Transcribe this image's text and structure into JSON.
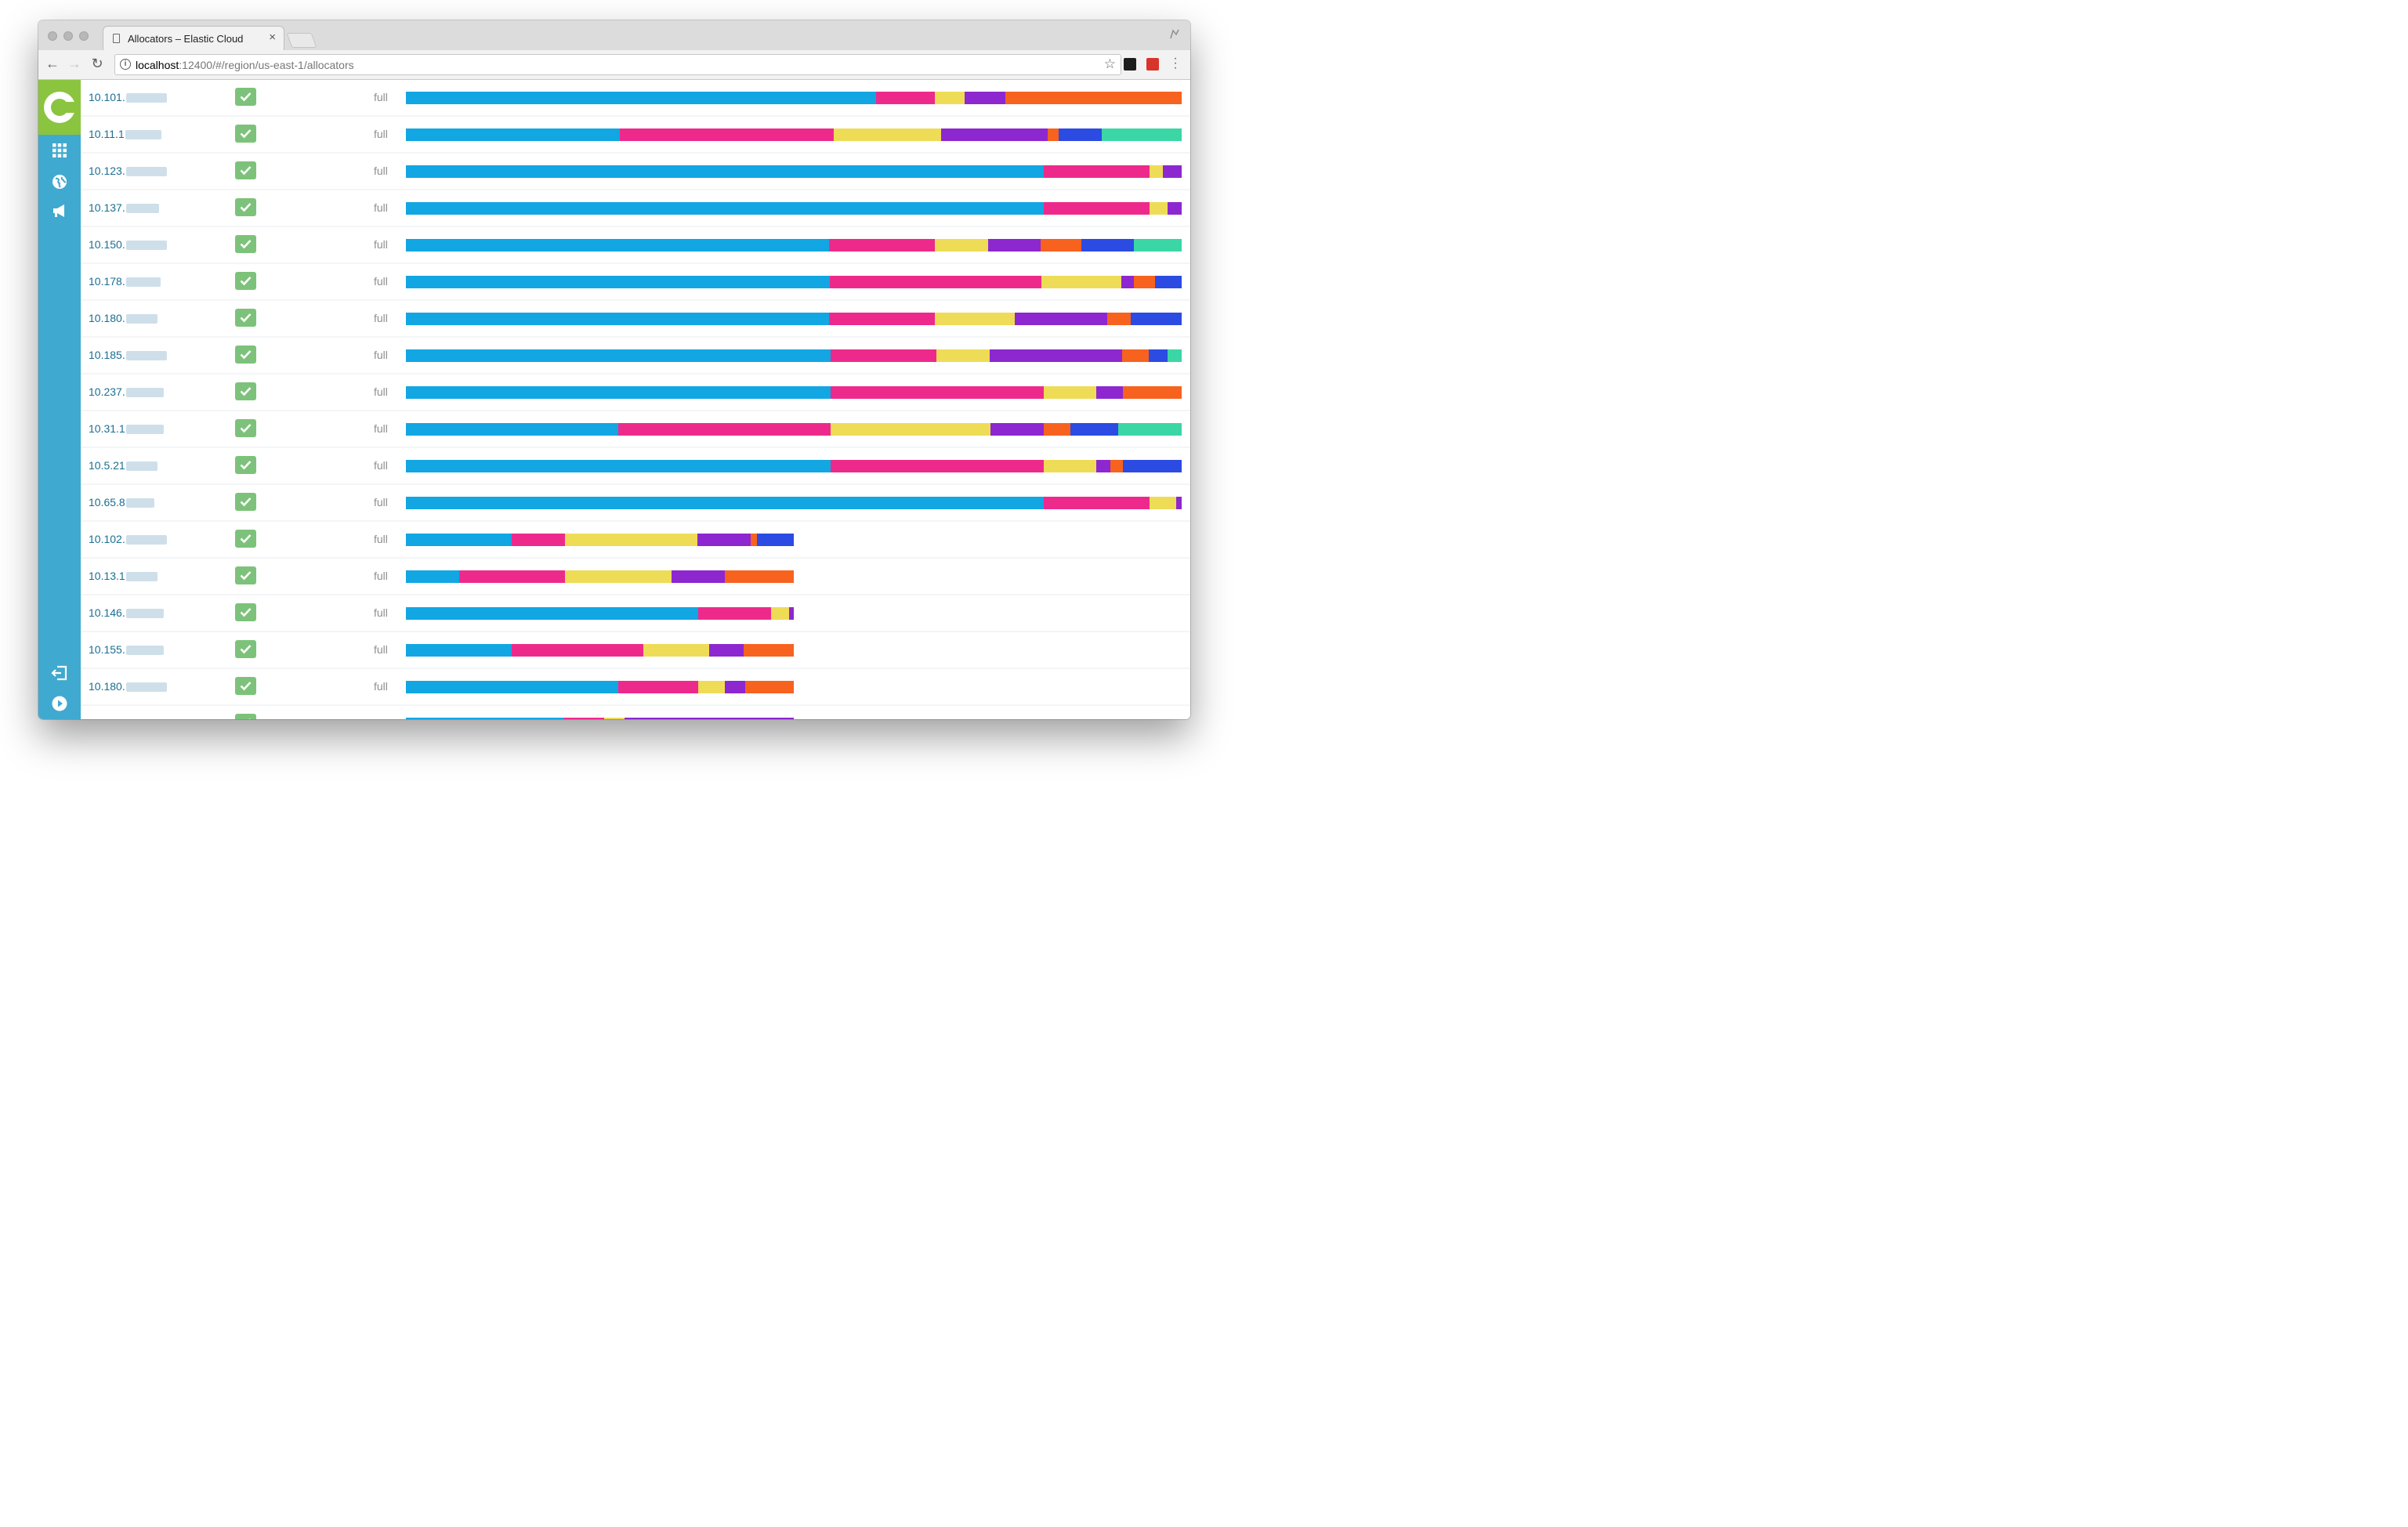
{
  "browser": {
    "tab_title": "Allocators – Elastic Cloud",
    "tab_close": "×",
    "url_host": "localhost",
    "url_rest": ":12400/#/region/us-east-1/allocators",
    "back_icon": "←",
    "forward_icon": "→",
    "reload_icon": "↻",
    "star_icon": "☆",
    "info_icon": "i"
  },
  "sidebar": {
    "icons": [
      "apps-grid-icon",
      "globe-icon",
      "megaphone-icon",
      "logout-icon",
      "play-circle-icon"
    ],
    "logo_color": "#8bc43f",
    "background": "#40a9cf"
  },
  "palette": {
    "blue": "#12a6e3",
    "magenta": "#ed2a8c",
    "yellow": "#eedc57",
    "purple": "#8d27cf",
    "orange": "#f7621f",
    "navy": "#2c4be3",
    "teal": "#3bd6a5"
  },
  "allocators": [
    {
      "ip": "10.101.",
      "hidden_part_width": 52,
      "status": "full",
      "healthy": true,
      "width_fraction": 1.0,
      "segments": [
        [
          "blue",
          8
        ],
        [
          "magenta",
          1
        ],
        [
          "yellow",
          0.5
        ],
        [
          "purple",
          0.7
        ],
        [
          "orange",
          3
        ]
      ]
    },
    {
      "ip": "10.11.1",
      "hidden_part_width": 46,
      "status": "full",
      "healthy": true,
      "width_fraction": 1.0,
      "segments": [
        [
          "blue",
          2
        ],
        [
          "magenta",
          2
        ],
        [
          "yellow",
          1
        ],
        [
          "purple",
          1
        ],
        [
          "orange",
          0.1
        ],
        [
          "navy",
          0.4
        ],
        [
          "teal",
          0.75
        ]
      ]
    },
    {
      "ip": "10.123.",
      "hidden_part_width": 52,
      "status": "full",
      "healthy": true,
      "width_fraction": 1.0,
      "segments": [
        [
          "blue",
          6
        ],
        [
          "magenta",
          1
        ],
        [
          "yellow",
          0.12
        ],
        [
          "purple",
          0.18
        ]
      ]
    },
    {
      "ip": "10.137.",
      "hidden_part_width": 42,
      "status": "full",
      "healthy": true,
      "width_fraction": 1.0,
      "segments": [
        [
          "blue",
          6
        ],
        [
          "magenta",
          1
        ],
        [
          "yellow",
          0.17
        ],
        [
          "purple",
          0.13
        ]
      ]
    },
    {
      "ip": "10.150.",
      "hidden_part_width": 52,
      "status": "full",
      "healthy": true,
      "width_fraction": 1.0,
      "segments": [
        [
          "blue",
          4
        ],
        [
          "magenta",
          1
        ],
        [
          "yellow",
          0.5
        ],
        [
          "purple",
          0.5
        ],
        [
          "orange",
          0.38
        ],
        [
          "navy",
          0.5
        ],
        [
          "teal",
          0.45
        ]
      ]
    },
    {
      "ip": "10.178.",
      "hidden_part_width": 44,
      "status": "full",
      "healthy": true,
      "width_fraction": 1.0,
      "segments": [
        [
          "blue",
          4
        ],
        [
          "magenta",
          2
        ],
        [
          "yellow",
          0.75
        ],
        [
          "purple",
          0.12
        ],
        [
          "orange",
          0.2
        ],
        [
          "navy",
          0.25
        ]
      ]
    },
    {
      "ip": "10.180.",
      "hidden_part_width": 40,
      "status": "full",
      "healthy": true,
      "width_fraction": 1.0,
      "segments": [
        [
          "blue",
          4
        ],
        [
          "magenta",
          1
        ],
        [
          "yellow",
          0.75
        ],
        [
          "purple",
          0.88
        ],
        [
          "orange",
          0.22
        ],
        [
          "navy",
          0.48
        ]
      ]
    },
    {
      "ip": "10.185.",
      "hidden_part_width": 52,
      "status": "full",
      "healthy": true,
      "width_fraction": 1.0,
      "segments": [
        [
          "blue",
          4
        ],
        [
          "magenta",
          1
        ],
        [
          "yellow",
          0.5
        ],
        [
          "purple",
          1.25
        ],
        [
          "orange",
          0.25
        ],
        [
          "navy",
          0.18
        ],
        [
          "teal",
          0.13
        ]
      ]
    },
    {
      "ip": "10.237.",
      "hidden_part_width": 48,
      "status": "full",
      "healthy": true,
      "width_fraction": 1.0,
      "segments": [
        [
          "blue",
          4
        ],
        [
          "magenta",
          2
        ],
        [
          "yellow",
          0.5
        ],
        [
          "purple",
          0.25
        ],
        [
          "orange",
          0.55
        ]
      ]
    },
    {
      "ip": "10.31.1",
      "hidden_part_width": 48,
      "status": "full",
      "healthy": true,
      "width_fraction": 1.0,
      "segments": [
        [
          "blue",
          2
        ],
        [
          "magenta",
          2
        ],
        [
          "yellow",
          1.5
        ],
        [
          "purple",
          0.5
        ],
        [
          "orange",
          0.25
        ],
        [
          "navy",
          0.45
        ],
        [
          "teal",
          0.6
        ]
      ]
    },
    {
      "ip": "10.5.21",
      "hidden_part_width": 40,
      "status": "full",
      "healthy": true,
      "width_fraction": 1.0,
      "segments": [
        [
          "blue",
          4
        ],
        [
          "magenta",
          2
        ],
        [
          "yellow",
          0.5
        ],
        [
          "purple",
          0.13
        ],
        [
          "orange",
          0.12
        ],
        [
          "navy",
          0.55
        ]
      ]
    },
    {
      "ip": "10.65.8",
      "hidden_part_width": 36,
      "status": "full",
      "healthy": true,
      "width_fraction": 1.0,
      "segments": [
        [
          "blue",
          6
        ],
        [
          "magenta",
          1
        ],
        [
          "yellow",
          0.25
        ],
        [
          "purple",
          0.05
        ]
      ]
    },
    {
      "ip": "10.102.",
      "hidden_part_width": 52,
      "status": "full",
      "healthy": true,
      "width_fraction": 0.5,
      "segments": [
        [
          "blue",
          2
        ],
        [
          "magenta",
          1
        ],
        [
          "yellow",
          2.5
        ],
        [
          "purple",
          1
        ],
        [
          "orange",
          0.12
        ],
        [
          "navy",
          0.7
        ]
      ]
    },
    {
      "ip": "10.13.1",
      "hidden_part_width": 40,
      "status": "full",
      "healthy": true,
      "width_fraction": 0.5,
      "segments": [
        [
          "blue",
          1
        ],
        [
          "magenta",
          2
        ],
        [
          "yellow",
          2
        ],
        [
          "purple",
          1
        ],
        [
          "orange",
          1.3
        ]
      ]
    },
    {
      "ip": "10.146.",
      "hidden_part_width": 48,
      "status": "full",
      "healthy": true,
      "width_fraction": 0.5,
      "segments": [
        [
          "blue",
          4
        ],
        [
          "magenta",
          1
        ],
        [
          "yellow",
          0.25
        ],
        [
          "purple",
          0.06
        ]
      ]
    },
    {
      "ip": "10.155.",
      "hidden_part_width": 48,
      "status": "full",
      "healthy": true,
      "width_fraction": 0.5,
      "segments": [
        [
          "blue",
          2
        ],
        [
          "magenta",
          2.5
        ],
        [
          "yellow",
          1.25
        ],
        [
          "purple",
          0.65
        ],
        [
          "orange",
          0.95
        ]
      ]
    },
    {
      "ip": "10.180.",
      "hidden_part_width": 52,
      "status": "full",
      "healthy": true,
      "width_fraction": 0.5,
      "segments": [
        [
          "blue",
          4
        ],
        [
          "magenta",
          1.5
        ],
        [
          "yellow",
          0.5
        ],
        [
          "purple",
          0.38
        ],
        [
          "orange",
          0.92
        ]
      ]
    },
    {
      "ip": "",
      "hidden_part_width": 0,
      "status": "",
      "healthy": true,
      "width_fraction": 0.5,
      "segments": [
        [
          "blue",
          3
        ],
        [
          "magenta",
          0.75
        ],
        [
          "yellow",
          0.4
        ],
        [
          "purple",
          3.2
        ]
      ]
    }
  ]
}
